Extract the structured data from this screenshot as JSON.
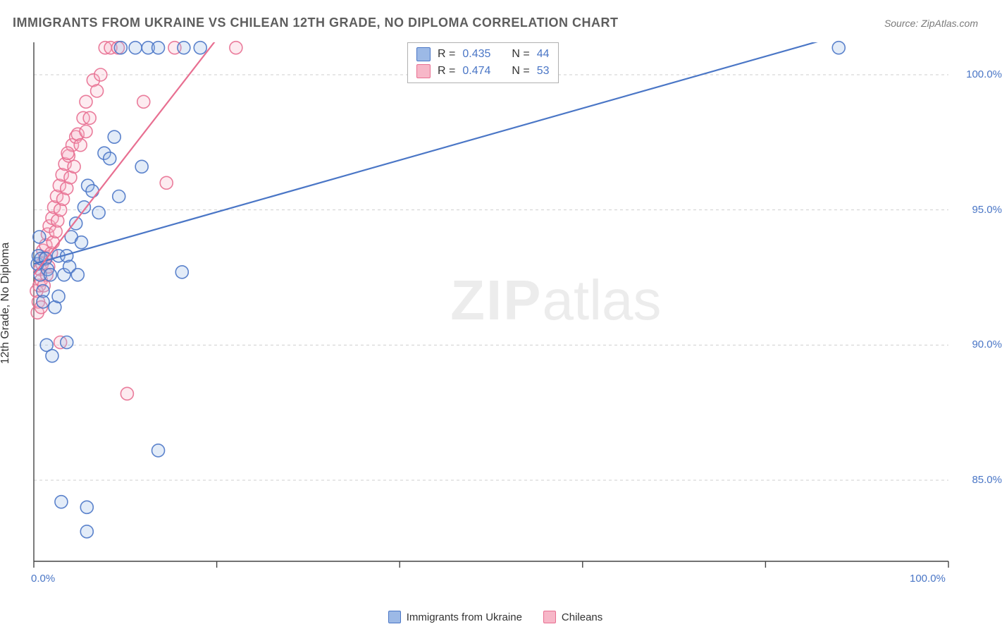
{
  "title": "IMMIGRANTS FROM UKRAINE VS CHILEAN 12TH GRADE, NO DIPLOMA CORRELATION CHART",
  "source_text": "Source: ZipAtlas.com",
  "ylabel": "12th Grade, No Diploma",
  "watermark": {
    "bold": "ZIP",
    "rest": "atlas"
  },
  "chart": {
    "type": "scatter",
    "background_color": "#ffffff",
    "grid_color": "#cfcfcf",
    "axis_color": "#444444",
    "tick_color": "#444444",
    "xlim": [
      0,
      100
    ],
    "ylim": [
      82,
      101.2
    ],
    "x_ticks": [
      0,
      20,
      40,
      60,
      80,
      100
    ],
    "x_tick_labels": {
      "0": "0.0%",
      "100": "100.0%"
    },
    "y_gridlines": [
      85,
      90,
      95,
      100
    ],
    "y_tick_labels": {
      "85": "85.0%",
      "90": "90.0%",
      "95": "95.0%",
      "100": "100.0%"
    },
    "plot_x_data_max": 100,
    "marker_radius": 9,
    "marker_stroke_width": 1.6,
    "marker_fill_opacity": 0.28,
    "trend_line_width": 2.2,
    "series": [
      {
        "id": "ukraine",
        "label": "Immigrants from Ukraine",
        "stroke": "#4a76c6",
        "fill": "#9cb9e6",
        "r_value": "0.435",
        "n_value": "44",
        "trend": {
          "x1": 0,
          "y1": 93.0,
          "x2": 100,
          "y2": 102.6
        },
        "points": [
          [
            0.4,
            93.0
          ],
          [
            0.5,
            93.3
          ],
          [
            0.6,
            94.0
          ],
          [
            0.7,
            92.6
          ],
          [
            0.8,
            93.2
          ],
          [
            1.0,
            92.0
          ],
          [
            1.0,
            91.6
          ],
          [
            1.3,
            93.2
          ],
          [
            1.5,
            92.8
          ],
          [
            1.8,
            92.6
          ],
          [
            1.4,
            90.0
          ],
          [
            2.0,
            89.6
          ],
          [
            2.3,
            91.4
          ],
          [
            2.7,
            91.8
          ],
          [
            2.7,
            93.3
          ],
          [
            3.3,
            92.6
          ],
          [
            3.6,
            93.3
          ],
          [
            3.9,
            92.9
          ],
          [
            4.1,
            94.0
          ],
          [
            4.6,
            94.5
          ],
          [
            4.8,
            92.6
          ],
          [
            5.2,
            93.8
          ],
          [
            5.5,
            95.1
          ],
          [
            5.9,
            95.9
          ],
          [
            6.4,
            95.7
          ],
          [
            7.1,
            94.9
          ],
          [
            7.7,
            97.1
          ],
          [
            8.3,
            96.9
          ],
          [
            8.8,
            97.7
          ],
          [
            9.3,
            95.5
          ],
          [
            9.5,
            101.0
          ],
          [
            11.1,
            101.0
          ],
          [
            12.5,
            101.0
          ],
          [
            13.6,
            101.0
          ],
          [
            16.4,
            101.0
          ],
          [
            18.2,
            101.0
          ],
          [
            11.8,
            96.6
          ],
          [
            16.2,
            92.7
          ],
          [
            13.6,
            86.1
          ],
          [
            5.8,
            84.0
          ],
          [
            5.8,
            83.1
          ],
          [
            3.0,
            84.2
          ],
          [
            88.0,
            101.0
          ],
          [
            3.6,
            90.1
          ]
        ]
      },
      {
        "id": "chileans",
        "label": "Chileans",
        "stroke": "#e86f91",
        "fill": "#f7b7c8",
        "r_value": "0.474",
        "n_value": "53",
        "trend": {
          "x1": 0,
          "y1": 92.6,
          "x2": 25,
          "y2": 103.5
        },
        "points": [
          [
            0.3,
            92.0
          ],
          [
            0.4,
            91.2
          ],
          [
            0.5,
            91.6
          ],
          [
            0.6,
            92.2
          ],
          [
            0.7,
            92.8
          ],
          [
            0.8,
            91.4
          ],
          [
            0.8,
            92.4
          ],
          [
            0.9,
            93.0
          ],
          [
            1.0,
            93.5
          ],
          [
            1.1,
            92.2
          ],
          [
            1.2,
            93.2
          ],
          [
            1.3,
            93.7
          ],
          [
            1.4,
            92.6
          ],
          [
            1.5,
            94.1
          ],
          [
            1.6,
            92.9
          ],
          [
            1.7,
            94.4
          ],
          [
            1.9,
            93.4
          ],
          [
            2.0,
            94.7
          ],
          [
            2.1,
            93.8
          ],
          [
            2.2,
            95.1
          ],
          [
            2.4,
            94.2
          ],
          [
            2.5,
            95.5
          ],
          [
            2.6,
            94.6
          ],
          [
            2.8,
            95.9
          ],
          [
            2.9,
            95.0
          ],
          [
            3.1,
            96.3
          ],
          [
            3.2,
            95.4
          ],
          [
            3.4,
            96.7
          ],
          [
            3.6,
            95.8
          ],
          [
            3.8,
            97.0
          ],
          [
            4.0,
            96.2
          ],
          [
            4.2,
            97.4
          ],
          [
            4.4,
            96.6
          ],
          [
            4.6,
            97.7
          ],
          [
            4.8,
            97.8
          ],
          [
            5.1,
            97.4
          ],
          [
            5.4,
            98.4
          ],
          [
            5.7,
            99.0
          ],
          [
            5.7,
            97.9
          ],
          [
            6.1,
            98.4
          ],
          [
            6.5,
            99.8
          ],
          [
            6.9,
            99.4
          ],
          [
            7.3,
            100.0
          ],
          [
            7.8,
            101.0
          ],
          [
            8.4,
            101.0
          ],
          [
            9.2,
            101.0
          ],
          [
            12.0,
            99.0
          ],
          [
            14.5,
            96.0
          ],
          [
            15.4,
            101.0
          ],
          [
            22.1,
            101.0
          ],
          [
            10.2,
            88.2
          ],
          [
            2.9,
            90.1
          ],
          [
            3.7,
            97.1
          ]
        ]
      }
    ]
  },
  "stat_box": {
    "r_label": "R =",
    "n_label": "N ="
  },
  "bottom_legend_labels": {
    "ukraine": "Immigrants from Ukraine",
    "chileans": "Chileans"
  }
}
